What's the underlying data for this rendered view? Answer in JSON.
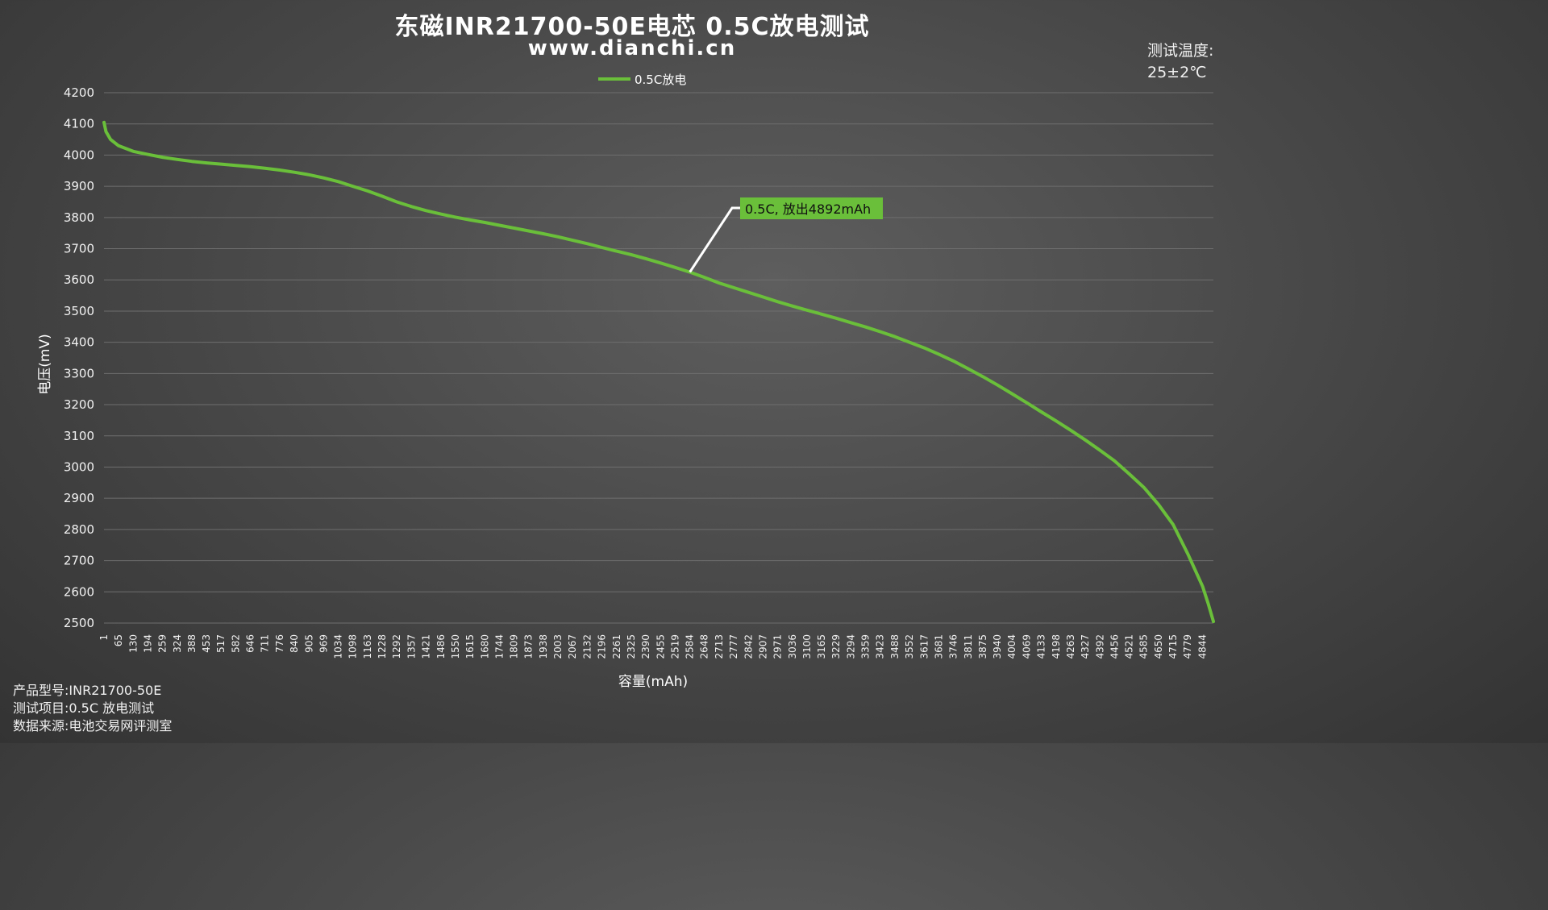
{
  "header": {
    "title": "东磁INR21700-50E电芯 0.5C放电测试",
    "subtitle": "www.dianchi.cn"
  },
  "temperature": {
    "label": "测试温度:",
    "value": "25±2℃"
  },
  "notes": {
    "model": "产品型号:INR21700-50E",
    "test_item": "测试项目:0.5C 放电测试",
    "source": "数据来源:电池交易网评测室"
  },
  "colors": {
    "series": "#6abf3a",
    "grid": "#6e6e6e",
    "annotation_bg": "#6abf3a",
    "annotation_line": "#ffffff"
  },
  "chart_data": {
    "type": "line",
    "title": "东磁INR21700-50E电芯 0.5C放电测试",
    "xlabel": "容量(mAh)",
    "ylabel": "电压(mV)",
    "ylim": [
      2500,
      4200
    ],
    "yticks": [
      4200,
      4100,
      4000,
      3900,
      3800,
      3700,
      3600,
      3500,
      3400,
      3300,
      3200,
      3100,
      3000,
      2900,
      2800,
      2700,
      2600,
      2500
    ],
    "xlim": [
      1,
      4892
    ],
    "xticks": [
      1,
      65,
      130,
      194,
      259,
      324,
      388,
      453,
      517,
      582,
      646,
      711,
      776,
      840,
      905,
      969,
      1034,
      1098,
      1163,
      1228,
      1292,
      1357,
      1421,
      1486,
      1550,
      1615,
      1680,
      1744,
      1809,
      1873,
      1938,
      2003,
      2067,
      2132,
      2196,
      2261,
      2325,
      2390,
      2455,
      2519,
      2584,
      2648,
      2713,
      2777,
      2842,
      2907,
      2971,
      3036,
      3100,
      3165,
      3229,
      3294,
      3359,
      3423,
      3488,
      3552,
      3617,
      3681,
      3746,
      3811,
      3875,
      3940,
      4004,
      4069,
      4133,
      4198,
      4263,
      4327,
      4392,
      4456,
      4521,
      4585,
      4650,
      4715,
      4779,
      4844
    ],
    "grid": true,
    "legend_position": "top-center",
    "series": [
      {
        "name": "0.5C放电",
        "color": "#6abf3a",
        "x": [
          1,
          10,
          30,
          65,
          130,
          194,
          259,
          324,
          388,
          453,
          517,
          582,
          646,
          711,
          776,
          840,
          905,
          969,
          1034,
          1098,
          1163,
          1228,
          1292,
          1357,
          1421,
          1486,
          1550,
          1615,
          1680,
          1744,
          1809,
          1873,
          1938,
          2003,
          2067,
          2132,
          2196,
          2261,
          2325,
          2390,
          2455,
          2519,
          2584,
          2648,
          2713,
          2777,
          2842,
          2907,
          2971,
          3036,
          3100,
          3165,
          3229,
          3294,
          3359,
          3423,
          3488,
          3552,
          3617,
          3681,
          3746,
          3811,
          3875,
          3940,
          4004,
          4069,
          4133,
          4198,
          4263,
          4327,
          4392,
          4456,
          4521,
          4585,
          4650,
          4715,
          4779,
          4844,
          4870,
          4892
        ],
        "y": [
          4105,
          4075,
          4050,
          4030,
          4012,
          4002,
          3993,
          3986,
          3980,
          3975,
          3971,
          3967,
          3963,
          3958,
          3952,
          3945,
          3937,
          3927,
          3915,
          3900,
          3885,
          3868,
          3850,
          3835,
          3822,
          3811,
          3801,
          3792,
          3784,
          3775,
          3766,
          3757,
          3748,
          3738,
          3727,
          3716,
          3704,
          3692,
          3681,
          3668,
          3654,
          3640,
          3625,
          3608,
          3590,
          3575,
          3560,
          3545,
          3530,
          3516,
          3503,
          3490,
          3477,
          3463,
          3449,
          3434,
          3418,
          3400,
          3382,
          3362,
          3340,
          3315,
          3290,
          3263,
          3235,
          3206,
          3177,
          3148,
          3118,
          3087,
          3054,
          3020,
          2978,
          2935,
          2880,
          2815,
          2722,
          2618,
          2560,
          2505
        ]
      }
    ],
    "annotation": {
      "text": "0.5C, 放出4892mAh",
      "x": 2584,
      "y": 3620
    }
  }
}
